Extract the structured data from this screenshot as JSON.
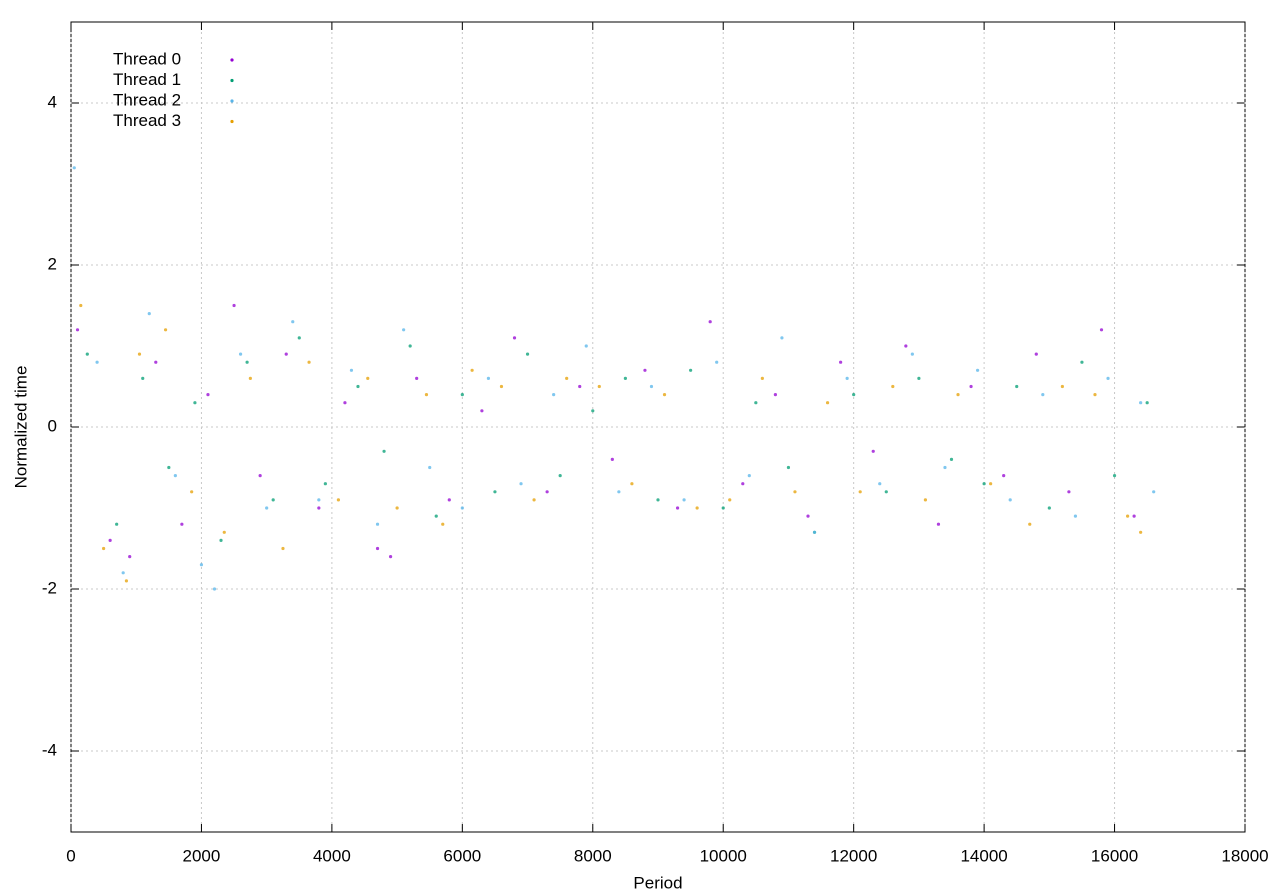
{
  "chart_data": {
    "type": "scatter",
    "xlabel": "Period",
    "ylabel": "Normalized time",
    "xlim": [
      0,
      18000
    ],
    "ylim": [
      -5,
      5
    ],
    "xticks": [
      0,
      2000,
      4000,
      6000,
      8000,
      10000,
      12000,
      14000,
      16000,
      18000
    ],
    "yticks": [
      -4,
      -2,
      0,
      2,
      4
    ],
    "grid": true,
    "legend": "top-left",
    "series": [
      {
        "name": "Thread 0",
        "color": "#9400d3",
        "x": [
          100,
          600,
          900,
          1300,
          1700,
          2100,
          2500,
          2900,
          3300,
          3800,
          4200,
          4700,
          4900,
          5300,
          5800,
          6300,
          6800,
          7300,
          7800,
          8300,
          8800,
          9300,
          9800,
          10300,
          10800,
          11300,
          11800,
          12300,
          12800,
          13300,
          13800,
          14300,
          14800,
          15300,
          15800,
          16300
        ],
        "y": [
          1.2,
          -1.4,
          -1.6,
          0.8,
          -1.2,
          0.4,
          1.5,
          -0.6,
          0.9,
          -1.0,
          0.3,
          -1.5,
          -1.6,
          0.6,
          -0.9,
          0.2,
          1.1,
          -0.8,
          0.5,
          -0.4,
          0.7,
          -1.0,
          1.3,
          -0.7,
          0.4,
          -1.1,
          0.8,
          -0.3,
          1.0,
          -1.2,
          0.5,
          -0.6,
          0.9,
          -0.8,
          1.2,
          -1.1
        ]
      },
      {
        "name": "Thread 1",
        "color": "#009e73",
        "x": [
          250,
          700,
          1100,
          1500,
          1900,
          2300,
          2700,
          3100,
          3500,
          3900,
          4400,
          4800,
          5200,
          5600,
          6000,
          6500,
          7000,
          7500,
          8000,
          8500,
          9000,
          9500,
          10000,
          10500,
          11000,
          11400,
          12000,
          12500,
          13000,
          13500,
          14000,
          14500,
          15000,
          15500,
          16000,
          16500
        ],
        "y": [
          0.9,
          -1.2,
          0.6,
          -0.5,
          0.3,
          -1.4,
          0.8,
          -0.9,
          1.1,
          -0.7,
          0.5,
          -0.3,
          1.0,
          -1.1,
          0.4,
          -0.8,
          0.9,
          -0.6,
          0.2,
          0.6,
          -0.9,
          0.7,
          -1.0,
          0.3,
          -0.5,
          -1.3,
          0.4,
          -0.8,
          0.6,
          -0.4,
          -0.7,
          0.5,
          -1.0,
          0.8,
          -0.6,
          0.3
        ]
      },
      {
        "name": "Thread 2",
        "color": "#56b4e9",
        "x": [
          50,
          400,
          800,
          1200,
          1600,
          2000,
          2200,
          2600,
          3000,
          3400,
          3800,
          4300,
          4700,
          5100,
          5500,
          6000,
          6400,
          6900,
          7400,
          7900,
          8400,
          8900,
          9400,
          9900,
          10400,
          10900,
          11400,
          11900,
          12400,
          12900,
          13400,
          13900,
          14400,
          14900,
          15400,
          15900,
          16400,
          16600
        ],
        "y": [
          3.2,
          0.8,
          -1.8,
          1.4,
          -0.6,
          -1.7,
          -2.0,
          0.9,
          -1.0,
          1.3,
          -0.9,
          0.7,
          -1.2,
          1.2,
          -0.5,
          -1.0,
          0.6,
          -0.7,
          0.4,
          1.0,
          -0.8,
          0.5,
          -0.9,
          0.8,
          -0.6,
          1.1,
          -1.3,
          0.6,
          -0.7,
          0.9,
          -0.5,
          0.7,
          -0.9,
          0.4,
          -1.1,
          0.6,
          0.3,
          -0.8
        ]
      },
      {
        "name": "Thread 3",
        "color": "#e69f00",
        "x": [
          150,
          500,
          850,
          1050,
          1450,
          1850,
          2350,
          2750,
          3250,
          3650,
          4100,
          4550,
          5000,
          5450,
          5700,
          6150,
          6600,
          7100,
          7600,
          8100,
          8600,
          9100,
          9600,
          10100,
          10600,
          11100,
          11600,
          12100,
          12600,
          13100,
          13600,
          14100,
          14700,
          15200,
          15700,
          16200,
          16400
        ],
        "y": [
          1.5,
          -1.5,
          -1.9,
          0.9,
          1.2,
          -0.8,
          -1.3,
          0.6,
          -1.5,
          0.8,
          -0.9,
          0.6,
          -1.0,
          0.4,
          -1.2,
          0.7,
          0.5,
          -0.9,
          0.6,
          0.5,
          -0.7,
          0.4,
          -1.0,
          -0.9,
          0.6,
          -0.8,
          0.3,
          -0.8,
          0.5,
          -0.9,
          0.4,
          -0.7,
          -1.2,
          0.5,
          0.4,
          -1.1,
          -1.3
        ]
      }
    ]
  }
}
